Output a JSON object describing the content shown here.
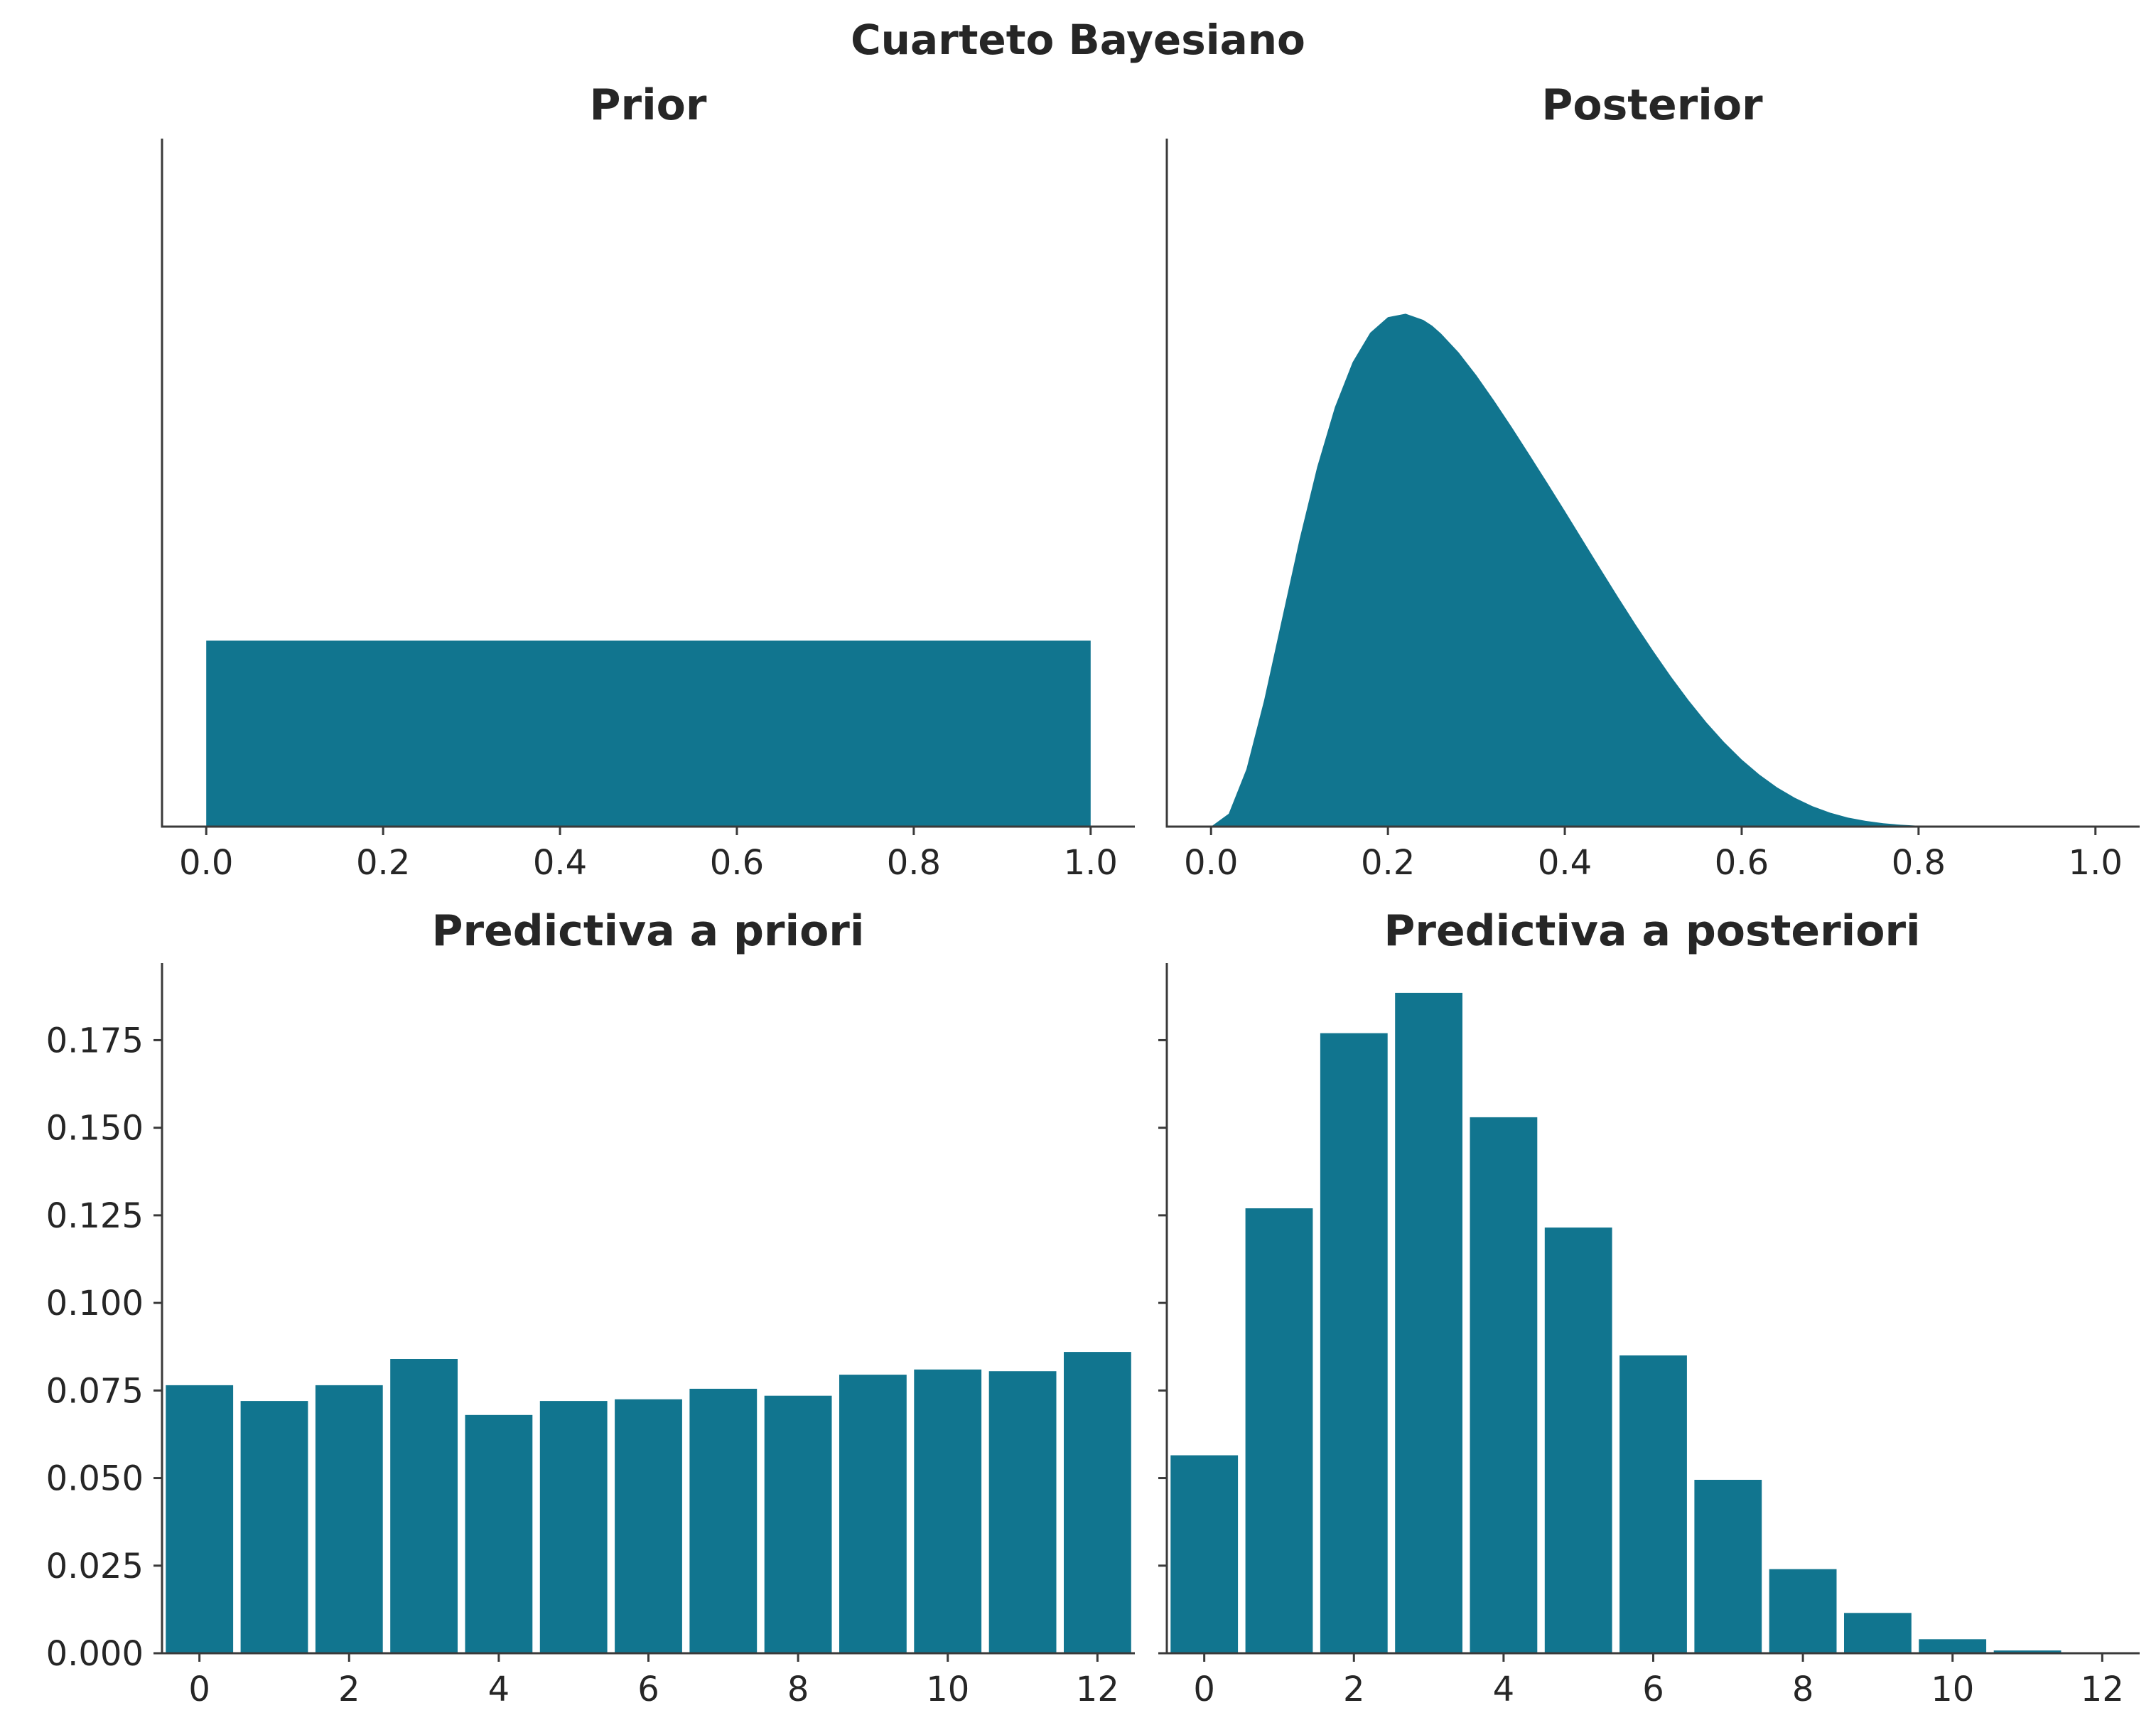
{
  "figure": {
    "title": "Cuarteto Bayesiano",
    "bar_color": "#11758f",
    "axis_color": "#3a3a3a",
    "text_color": "#262626"
  },
  "chart_data": [
    {
      "id": "prior",
      "type": "area",
      "title": "Prior",
      "xlim": [
        -0.05,
        1.05
      ],
      "ylim": [
        0,
        3.7
      ],
      "xticks": [
        0.0,
        0.2,
        0.4,
        0.6,
        0.8,
        1.0
      ],
      "xtick_labels": [
        "0.0",
        "0.2",
        "0.4",
        "0.6",
        "0.8",
        "1.0"
      ],
      "show_yticks": false,
      "x": [
        0.0,
        0.0,
        1.0,
        1.0
      ],
      "y": [
        0.0,
        1.0,
        1.0,
        0.0
      ]
    },
    {
      "id": "posterior",
      "type": "area",
      "title": "Posterior",
      "xlim": [
        -0.05,
        1.05
      ],
      "ylim": [
        0,
        3.7
      ],
      "xticks": [
        0.0,
        0.2,
        0.4,
        0.6,
        0.8,
        1.0
      ],
      "xtick_labels": [
        "0.0",
        "0.2",
        "0.4",
        "0.6",
        "0.8",
        "1.0"
      ],
      "show_yticks": false,
      "x": [
        0.0,
        0.02,
        0.04,
        0.06,
        0.08,
        0.1,
        0.12,
        0.14,
        0.16,
        0.18,
        0.2,
        0.22,
        0.24,
        0.25,
        0.26,
        0.28,
        0.3,
        0.32,
        0.34,
        0.36,
        0.38,
        0.4,
        0.42,
        0.44,
        0.46,
        0.48,
        0.5,
        0.52,
        0.54,
        0.56,
        0.58,
        0.6,
        0.62,
        0.64,
        0.66,
        0.68,
        0.7,
        0.72,
        0.74,
        0.76,
        0.78,
        0.8,
        0.82,
        0.84
      ],
      "y": [
        0.0,
        0.069,
        0.309,
        0.679,
        1.112,
        1.544,
        1.934,
        2.255,
        2.497,
        2.656,
        2.74,
        2.758,
        2.725,
        2.694,
        2.652,
        2.55,
        2.427,
        2.291,
        2.148,
        2.0,
        1.85,
        1.698,
        1.543,
        1.389,
        1.236,
        1.087,
        0.944,
        0.807,
        0.679,
        0.561,
        0.455,
        0.361,
        0.28,
        0.211,
        0.155,
        0.11,
        0.075,
        0.049,
        0.031,
        0.018,
        0.01,
        0.005,
        0.002,
        0.0
      ]
    },
    {
      "id": "prior-predictive",
      "type": "bar",
      "title": "Predictiva a priori",
      "xlim": [
        -0.5,
        12.5
      ],
      "ylim": [
        0,
        0.197
      ],
      "xticks": [
        0,
        2,
        4,
        6,
        8,
        10,
        12
      ],
      "xtick_labels": [
        "0",
        "2",
        "4",
        "6",
        "8",
        "10",
        "12"
      ],
      "yticks": [
        0.0,
        0.025,
        0.05,
        0.075,
        0.1,
        0.125,
        0.15,
        0.175
      ],
      "ytick_labels": [
        "0.000",
        "0.025",
        "0.050",
        "0.075",
        "0.100",
        "0.125",
        "0.150",
        "0.175"
      ],
      "show_yticks": true,
      "categories": [
        0,
        1,
        2,
        3,
        4,
        5,
        6,
        7,
        8,
        9,
        10,
        11,
        12
      ],
      "values": [
        0.0765,
        0.072,
        0.0765,
        0.084,
        0.068,
        0.072,
        0.0725,
        0.0755,
        0.0735,
        0.0795,
        0.081,
        0.0805,
        0.086
      ]
    },
    {
      "id": "posterior-predictive",
      "type": "bar",
      "title": "Predictiva a posteriori",
      "xlim": [
        -0.5,
        12.5
      ],
      "ylim": [
        0,
        0.197
      ],
      "xticks": [
        0,
        2,
        4,
        6,
        8,
        10,
        12
      ],
      "xtick_labels": [
        "0",
        "2",
        "4",
        "6",
        "8",
        "10",
        "12"
      ],
      "yticks": [
        0.0,
        0.025,
        0.05,
        0.075,
        0.1,
        0.125,
        0.15,
        0.175
      ],
      "ytick_labels": [
        "",
        "",
        "",
        "",
        "",
        "",
        "",
        ""
      ],
      "show_yticks": true,
      "categories": [
        0,
        1,
        2,
        3,
        4,
        5,
        6,
        7,
        8,
        9,
        10,
        11,
        12
      ],
      "values": [
        0.0565,
        0.127,
        0.177,
        0.1885,
        0.153,
        0.1215,
        0.085,
        0.0495,
        0.024,
        0.0115,
        0.004,
        0.0008,
        0.0002
      ]
    }
  ]
}
